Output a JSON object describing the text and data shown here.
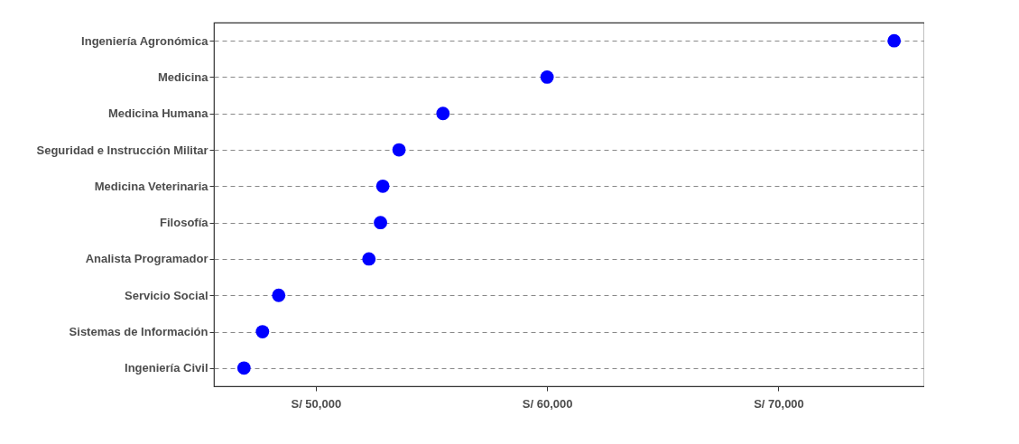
{
  "chart_data": {
    "type": "scatter",
    "orientation": "horizontal",
    "categories": [
      "Ingeniería Agronómica",
      "Medicina",
      "Medicina Humana",
      "Seguridad e Instrucción Militar",
      "Medicina Veterinaria",
      "Filosofía",
      "Analista Programador",
      "Servicio Social",
      "Sistemas de Información",
      "Ingeniería Civil"
    ],
    "series": [
      {
        "color": "#0000ff",
        "values": [
          75000,
          60000,
          55500,
          53600,
          52900,
          52800,
          52300,
          48400,
          47700,
          46900
        ]
      }
    ],
    "xlim": [
      45600,
      76300
    ],
    "xticks": [
      {
        "value": 50000,
        "label": "S/ 50,000"
      },
      {
        "value": 60000,
        "label": "S/ 60,000"
      },
      {
        "value": 70000,
        "label": "S/ 70,000"
      }
    ],
    "grid": "y",
    "marker": "circle",
    "legend": false
  }
}
